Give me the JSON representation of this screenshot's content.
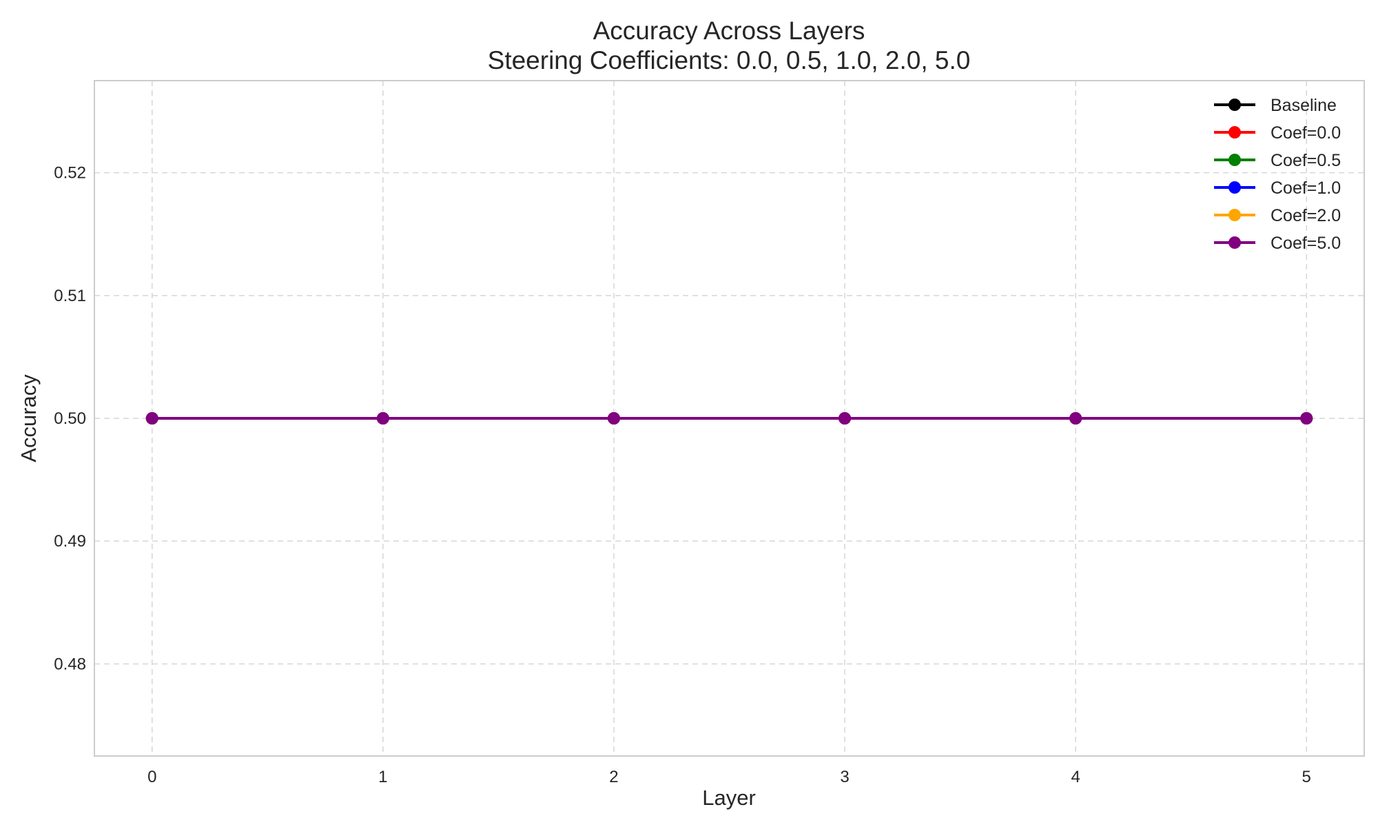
{
  "chart_data": {
    "type": "line",
    "title": "Accuracy Across Layers",
    "subtitle": "Steering Coefficients: 0.0, 0.5, 1.0, 2.0, 5.0",
    "xlabel": "Layer",
    "ylabel": "Accuracy",
    "x": [
      0,
      1,
      2,
      3,
      4,
      5
    ],
    "xticks": [
      "0",
      "1",
      "2",
      "3",
      "4",
      "5"
    ],
    "yticks": [
      "0.48",
      "0.49",
      "0.50",
      "0.51",
      "0.52"
    ],
    "xlim": [
      -0.25,
      5.25
    ],
    "ylim": [
      0.4725,
      0.5275
    ],
    "grid": true,
    "legend_position": "top-right",
    "series": [
      {
        "name": "Baseline",
        "color": "#000000",
        "values": [
          0.5,
          0.5,
          0.5,
          0.5,
          0.5,
          0.5
        ]
      },
      {
        "name": "Coef=0.0",
        "color": "#ff0000",
        "values": [
          0.5,
          0.5,
          0.5,
          0.5,
          0.5,
          0.5
        ]
      },
      {
        "name": "Coef=0.5",
        "color": "#008000",
        "values": [
          0.5,
          0.5,
          0.5,
          0.5,
          0.5,
          0.5
        ]
      },
      {
        "name": "Coef=1.0",
        "color": "#0000ff",
        "values": [
          0.5,
          0.5,
          0.5,
          0.5,
          0.5,
          0.5
        ]
      },
      {
        "name": "Coef=2.0",
        "color": "#ffa500",
        "values": [
          0.5,
          0.5,
          0.5,
          0.5,
          0.5,
          0.5
        ]
      },
      {
        "name": "Coef=5.0",
        "color": "#800080",
        "values": [
          0.5,
          0.5,
          0.5,
          0.5,
          0.5,
          0.5
        ]
      }
    ]
  }
}
